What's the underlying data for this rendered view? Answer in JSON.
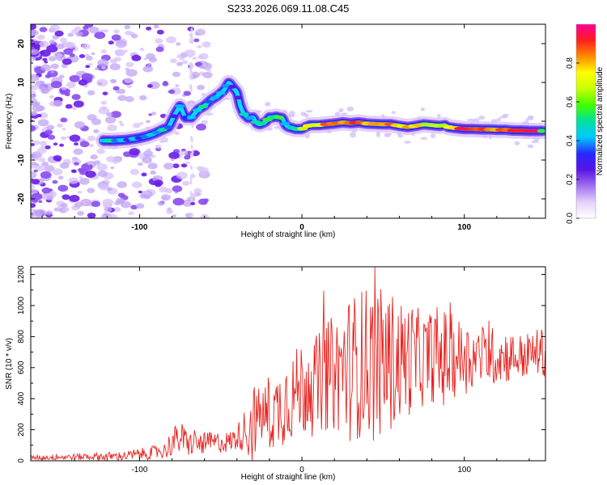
{
  "title": "S233.2026.069.11.08.C45",
  "colors": {
    "snr_line": "#e8231f",
    "axis": "#000000",
    "colormap": [
      "#ffffff",
      "#e6d2fa",
      "#a070f0",
      "#5a14e6",
      "#2828ff",
      "#00c8ff",
      "#00e0a0",
      "#40ff00",
      "#c8ff00",
      "#ffff00",
      "#ff8c00",
      "#ff1e1e",
      "#ff0096"
    ]
  },
  "chart_data": [
    {
      "type": "heatmap",
      "xlabel": "Height of straight line (km)",
      "ylabel": "Frequency (Hz)",
      "xlim": [
        -167,
        150
      ],
      "ylim": [
        -25,
        25
      ],
      "xticks": [
        -100,
        0,
        100
      ],
      "yticks": [
        -20,
        -10,
        0,
        10,
        20
      ],
      "ridge": {
        "x": [
          -122,
          -115,
          -108,
          -100,
          -95,
          -90,
          -85,
          -82,
          -78,
          -75,
          -72,
          -68,
          -64,
          -60,
          -56,
          -52,
          -48,
          -45,
          -43,
          -40,
          -38,
          -36,
          -33,
          -30,
          -28,
          -26,
          -24,
          -22,
          -20,
          -18,
          -16,
          -12,
          -10,
          -8,
          -4,
          0,
          2,
          5,
          10,
          15,
          20,
          25,
          30,
          35,
          40,
          45,
          50,
          55,
          60,
          65,
          70,
          75,
          80,
          85,
          88,
          90,
          95,
          100,
          105,
          110,
          115,
          120,
          125,
          130,
          135,
          140,
          145,
          148
        ],
        "freq": [
          -5,
          -5,
          -4.8,
          -4.3,
          -3.8,
          -3,
          -2,
          -1.5,
          2,
          4,
          1,
          1,
          3,
          4,
          5.5,
          6.5,
          8,
          10,
          9,
          7.5,
          4,
          2,
          0.8,
          1,
          -0.5,
          -0.8,
          -0.5,
          0,
          1,
          1,
          1.2,
          0.8,
          -1,
          -1.5,
          -2,
          -2,
          -1.5,
          -1,
          -1,
          -0.8,
          -0.6,
          -0.3,
          -0.5,
          -0.3,
          -0.6,
          -0.7,
          -0.8,
          -0.8,
          -1.2,
          -1.5,
          -1.2,
          -0.8,
          -1,
          -1.2,
          -1,
          -1.5,
          -1.8,
          -2,
          -2,
          -2.1,
          -2.1,
          -2.2,
          -2.2,
          -2.4,
          -2.4,
          -2.5,
          -2.5,
          -2.5
        ],
        "amplitude": [
          0.45,
          0.45,
          0.35,
          0.4,
          0.45,
          0.4,
          0.45,
          0.35,
          0.3,
          0.35,
          0.4,
          0.45,
          0.5,
          0.45,
          0.4,
          0.45,
          0.4,
          0.35,
          0.3,
          0.3,
          0.35,
          0.4,
          0.5,
          0.4,
          0.45,
          0.5,
          0.55,
          0.6,
          0.65,
          0.6,
          0.55,
          0.5,
          0.45,
          0.5,
          0.55,
          0.6,
          0.65,
          0.7,
          0.75,
          0.85,
          0.9,
          0.85,
          0.9,
          0.85,
          0.8,
          0.9,
          0.85,
          0.8,
          0.75,
          0.8,
          0.75,
          0.7,
          0.65,
          0.6,
          0.65,
          0.7,
          0.85,
          0.9,
          0.9,
          0.95,
          0.9,
          0.85,
          0.9,
          0.95,
          0.95,
          0.9,
          0.9,
          0.6
        ]
      },
      "colorbar": {
        "label": "Normalized spectral amplitude",
        "range": [
          0,
          1
        ],
        "ticks": [
          "0.0",
          "0.2",
          "0.4",
          "0.6",
          "0.8"
        ]
      }
    },
    {
      "type": "line",
      "xlabel": "Height of straight line (km)",
      "ylabel": "SNR (10 * v/v)",
      "xlim": [
        -167,
        150
      ],
      "ylim": [
        0,
        1250
      ],
      "xticks": [
        -100,
        0,
        100
      ],
      "yticks": [
        0,
        200,
        400,
        600,
        800,
        1000,
        1200
      ],
      "series": [
        {
          "name": "SNR",
          "envelope_x": [
            -167,
            -140,
            -110,
            -85,
            -80,
            -75,
            -70,
            -60,
            -50,
            -45,
            -40,
            -35,
            -30,
            -28,
            -25,
            -20,
            -15,
            -10,
            -5,
            0,
            5,
            10,
            15,
            20,
            25,
            30,
            35,
            40,
            45,
            50,
            55,
            60,
            65,
            70,
            75,
            80,
            85,
            90,
            95,
            100,
            105,
            110,
            115,
            120,
            125,
            130,
            135,
            140,
            145,
            150
          ],
          "envelope_mean": [
            20,
            25,
            30,
            60,
            120,
            150,
            110,
            110,
            120,
            120,
            150,
            200,
            230,
            280,
            300,
            280,
            330,
            400,
            420,
            480,
            460,
            500,
            550,
            560,
            600,
            600,
            620,
            640,
            620,
            640,
            640,
            640,
            660,
            660,
            650,
            680,
            660,
            660,
            670,
            670,
            660,
            680,
            680,
            670,
            680,
            670,
            670,
            680,
            700,
            700
          ],
          "envelope_spread": [
            15,
            20,
            30,
            50,
            90,
            110,
            80,
            70,
            70,
            70,
            80,
            140,
            320,
            170,
            200,
            230,
            250,
            300,
            280,
            320,
            320,
            320,
            360,
            380,
            420,
            480,
            480,
            500,
            520,
            460,
            460,
            400,
            380,
            340,
            300,
            300,
            360,
            300,
            260,
            240,
            220,
            200,
            200,
            180,
            180,
            160,
            150,
            150,
            150,
            160
          ]
        }
      ]
    }
  ]
}
